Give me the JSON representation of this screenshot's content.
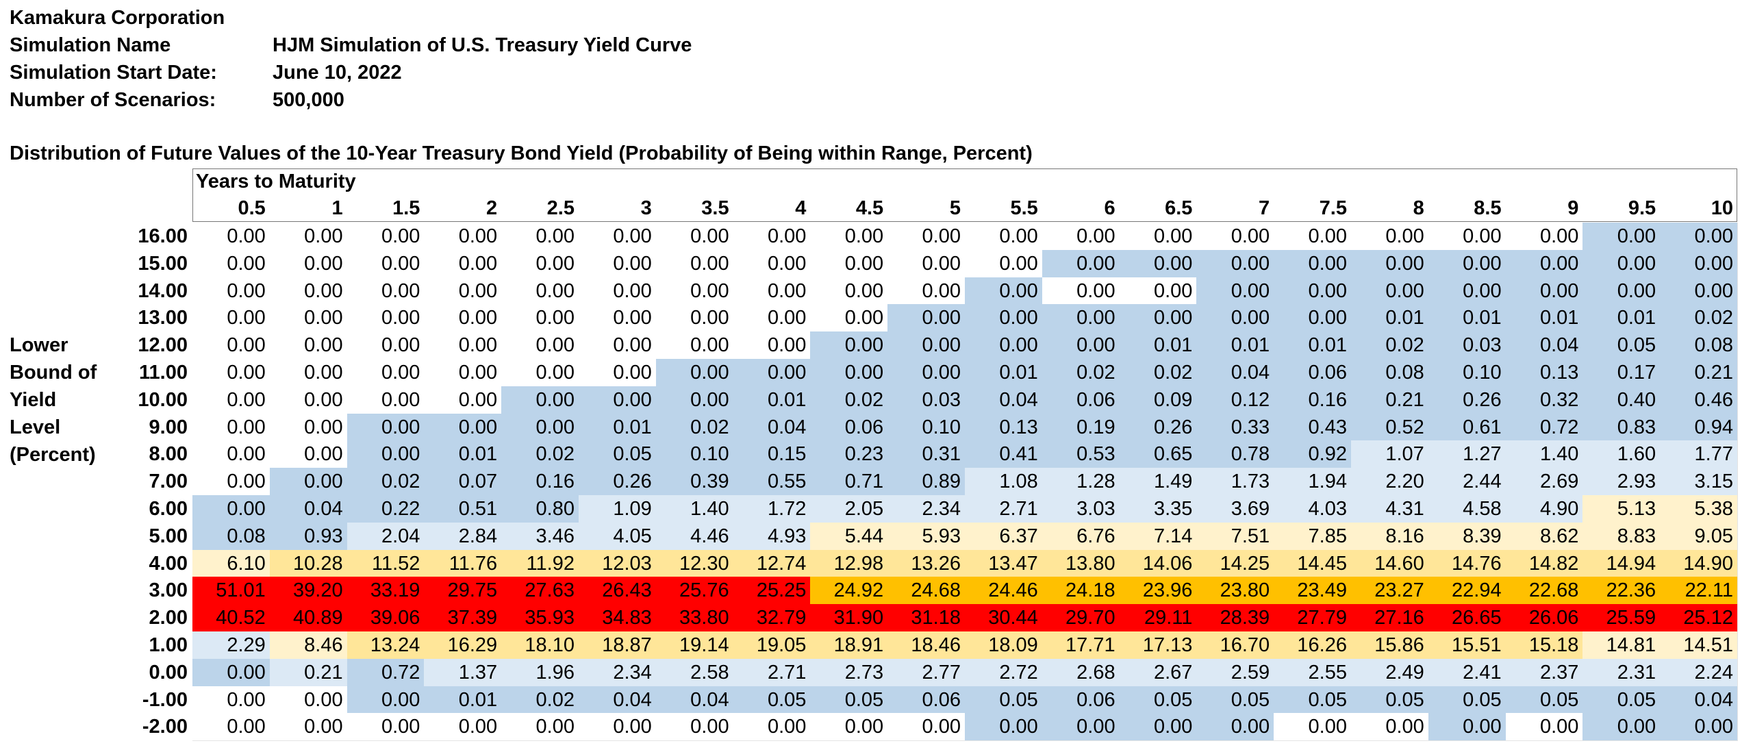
{
  "company": "Kamakura Corporation",
  "meta": {
    "sim_name_label": "Simulation Name",
    "sim_name_value": "HJM Simulation of U.S. Treasury Yield Curve",
    "start_label": "Simulation Start Date:",
    "start_value": "June 10, 2022",
    "scen_label": "Number of Scenarios:",
    "scen_value": "500,000"
  },
  "dist_title": "Distribution of Future Values of the 10-Year Treasury Bond Yield (Probability of Being within Range, Percent)",
  "years_header": "Years to Maturity",
  "side_label": [
    "Lower",
    "Bound of",
    "Yield",
    "Level",
    "(Percent)"
  ],
  "colors": {
    "white": "#ffffff",
    "light_blue": "#dce9f5",
    "blue": "#bcd4ea",
    "light_yellow": "#fff2cc",
    "yellow": "#ffe699",
    "orange": "#ffc000",
    "red": "#ff0000"
  },
  "maturities": [
    "0.5",
    "1",
    "1.5",
    "2",
    "2.5",
    "3",
    "3.5",
    "4",
    "4.5",
    "5",
    "5.5",
    "6",
    "6.5",
    "7",
    "7.5",
    "8",
    "8.5",
    "9",
    "9.5",
    "10"
  ],
  "yield_levels": [
    "16.00",
    "15.00",
    "14.00",
    "13.00",
    "12.00",
    "11.00",
    "10.00",
    "9.00",
    "8.00",
    "7.00",
    "6.00",
    "5.00",
    "4.00",
    "3.00",
    "2.00",
    "1.00",
    "0.00",
    "-1.00",
    "-2.00"
  ],
  "rows": [
    [
      "0.00",
      "0.00",
      "0.00",
      "0.00",
      "0.00",
      "0.00",
      "0.00",
      "0.00",
      "0.00",
      "0.00",
      "0.00",
      "0.00",
      "0.00",
      "0.00",
      "0.00",
      "0.00",
      "0.00",
      "0.00",
      "0.00",
      "0.00"
    ],
    [
      "0.00",
      "0.00",
      "0.00",
      "0.00",
      "0.00",
      "0.00",
      "0.00",
      "0.00",
      "0.00",
      "0.00",
      "0.00",
      "0.00",
      "0.00",
      "0.00",
      "0.00",
      "0.00",
      "0.00",
      "0.00",
      "0.00",
      "0.00"
    ],
    [
      "0.00",
      "0.00",
      "0.00",
      "0.00",
      "0.00",
      "0.00",
      "0.00",
      "0.00",
      "0.00",
      "0.00",
      "0.00",
      "0.00",
      "0.00",
      "0.00",
      "0.00",
      "0.00",
      "0.00",
      "0.00",
      "0.00",
      "0.00"
    ],
    [
      "0.00",
      "0.00",
      "0.00",
      "0.00",
      "0.00",
      "0.00",
      "0.00",
      "0.00",
      "0.00",
      "0.00",
      "0.00",
      "0.00",
      "0.00",
      "0.00",
      "0.00",
      "0.01",
      "0.01",
      "0.01",
      "0.01",
      "0.02"
    ],
    [
      "0.00",
      "0.00",
      "0.00",
      "0.00",
      "0.00",
      "0.00",
      "0.00",
      "0.00",
      "0.00",
      "0.00",
      "0.00",
      "0.00",
      "0.01",
      "0.01",
      "0.01",
      "0.02",
      "0.03",
      "0.04",
      "0.05",
      "0.08"
    ],
    [
      "0.00",
      "0.00",
      "0.00",
      "0.00",
      "0.00",
      "0.00",
      "0.00",
      "0.00",
      "0.00",
      "0.00",
      "0.01",
      "0.02",
      "0.02",
      "0.04",
      "0.06",
      "0.08",
      "0.10",
      "0.13",
      "0.17",
      "0.21"
    ],
    [
      "0.00",
      "0.00",
      "0.00",
      "0.00",
      "0.00",
      "0.00",
      "0.00",
      "0.01",
      "0.02",
      "0.03",
      "0.04",
      "0.06",
      "0.09",
      "0.12",
      "0.16",
      "0.21",
      "0.26",
      "0.32",
      "0.40",
      "0.46"
    ],
    [
      "0.00",
      "0.00",
      "0.00",
      "0.00",
      "0.00",
      "0.01",
      "0.02",
      "0.04",
      "0.06",
      "0.10",
      "0.13",
      "0.19",
      "0.26",
      "0.33",
      "0.43",
      "0.52",
      "0.61",
      "0.72",
      "0.83",
      "0.94"
    ],
    [
      "0.00",
      "0.00",
      "0.00",
      "0.01",
      "0.02",
      "0.05",
      "0.10",
      "0.15",
      "0.23",
      "0.31",
      "0.41",
      "0.53",
      "0.65",
      "0.78",
      "0.92",
      "1.07",
      "1.27",
      "1.40",
      "1.60",
      "1.77"
    ],
    [
      "0.00",
      "0.00",
      "0.02",
      "0.07",
      "0.16",
      "0.26",
      "0.39",
      "0.55",
      "0.71",
      "0.89",
      "1.08",
      "1.28",
      "1.49",
      "1.73",
      "1.94",
      "2.20",
      "2.44",
      "2.69",
      "2.93",
      "3.15"
    ],
    [
      "0.00",
      "0.04",
      "0.22",
      "0.51",
      "0.80",
      "1.09",
      "1.40",
      "1.72",
      "2.05",
      "2.34",
      "2.71",
      "3.03",
      "3.35",
      "3.69",
      "4.03",
      "4.31",
      "4.58",
      "4.90",
      "5.13",
      "5.38"
    ],
    [
      "0.08",
      "0.93",
      "2.04",
      "2.84",
      "3.46",
      "4.05",
      "4.46",
      "4.93",
      "5.44",
      "5.93",
      "6.37",
      "6.76",
      "7.14",
      "7.51",
      "7.85",
      "8.16",
      "8.39",
      "8.62",
      "8.83",
      "9.05"
    ],
    [
      "6.10",
      "10.28",
      "11.52",
      "11.76",
      "11.92",
      "12.03",
      "12.30",
      "12.74",
      "12.98",
      "13.26",
      "13.47",
      "13.80",
      "14.06",
      "14.25",
      "14.45",
      "14.60",
      "14.76",
      "14.82",
      "14.94",
      "14.90"
    ],
    [
      "51.01",
      "39.20",
      "33.19",
      "29.75",
      "27.63",
      "26.43",
      "25.76",
      "25.25",
      "24.92",
      "24.68",
      "24.46",
      "24.18",
      "23.96",
      "23.80",
      "23.49",
      "23.27",
      "22.94",
      "22.68",
      "22.36",
      "22.11"
    ],
    [
      "40.52",
      "40.89",
      "39.06",
      "37.39",
      "35.93",
      "34.83",
      "33.80",
      "32.79",
      "31.90",
      "31.18",
      "30.44",
      "29.70",
      "29.11",
      "28.39",
      "27.79",
      "27.16",
      "26.65",
      "26.06",
      "25.59",
      "25.12"
    ],
    [
      "2.29",
      "8.46",
      "13.24",
      "16.29",
      "18.10",
      "18.87",
      "19.14",
      "19.05",
      "18.91",
      "18.46",
      "18.09",
      "17.71",
      "17.13",
      "16.70",
      "16.26",
      "15.86",
      "15.51",
      "15.18",
      "14.81",
      "14.51"
    ],
    [
      "0.00",
      "0.21",
      "0.72",
      "1.37",
      "1.96",
      "2.34",
      "2.58",
      "2.71",
      "2.73",
      "2.77",
      "2.72",
      "2.68",
      "2.67",
      "2.59",
      "2.55",
      "2.49",
      "2.41",
      "2.37",
      "2.31",
      "2.24"
    ],
    [
      "0.00",
      "0.00",
      "0.00",
      "0.01",
      "0.02",
      "0.04",
      "0.04",
      "0.05",
      "0.05",
      "0.06",
      "0.05",
      "0.06",
      "0.05",
      "0.05",
      "0.05",
      "0.05",
      "0.05",
      "0.05",
      "0.05",
      "0.04"
    ],
    [
      "0.00",
      "0.00",
      "0.00",
      "0.00",
      "0.00",
      "0.00",
      "0.00",
      "0.00",
      "0.00",
      "0.00",
      "0.00",
      "0.00",
      "0.00",
      "0.00",
      "0.00",
      "0.00",
      "0.00",
      "0.00",
      "0.00",
      "0.00"
    ]
  ],
  "row_colors": [
    [
      "W",
      "W",
      "W",
      "W",
      "W",
      "W",
      "W",
      "W",
      "W",
      "W",
      "W",
      "W",
      "W",
      "W",
      "W",
      "W",
      "W",
      "W",
      "B",
      "B"
    ],
    [
      "W",
      "W",
      "W",
      "W",
      "W",
      "W",
      "W",
      "W",
      "W",
      "W",
      "W",
      "B",
      "B",
      "B",
      "B",
      "B",
      "B",
      "B",
      "B",
      "B"
    ],
    [
      "W",
      "W",
      "W",
      "W",
      "W",
      "W",
      "W",
      "W",
      "W",
      "W",
      "B",
      "W",
      "W",
      "B",
      "B",
      "B",
      "B",
      "B",
      "B",
      "B"
    ],
    [
      "W",
      "W",
      "W",
      "W",
      "W",
      "W",
      "W",
      "W",
      "W",
      "B",
      "B",
      "B",
      "B",
      "B",
      "B",
      "B",
      "B",
      "B",
      "B",
      "B"
    ],
    [
      "W",
      "W",
      "W",
      "W",
      "W",
      "W",
      "W",
      "W",
      "B",
      "B",
      "B",
      "B",
      "B",
      "B",
      "B",
      "B",
      "B",
      "B",
      "B",
      "B"
    ],
    [
      "W",
      "W",
      "W",
      "W",
      "W",
      "W",
      "B",
      "B",
      "B",
      "B",
      "B",
      "B",
      "B",
      "B",
      "B",
      "B",
      "B",
      "B",
      "B",
      "B"
    ],
    [
      "W",
      "W",
      "W",
      "W",
      "B",
      "B",
      "B",
      "B",
      "B",
      "B",
      "B",
      "B",
      "B",
      "B",
      "B",
      "B",
      "B",
      "B",
      "B",
      "B"
    ],
    [
      "W",
      "W",
      "B",
      "B",
      "B",
      "B",
      "B",
      "B",
      "B",
      "B",
      "B",
      "B",
      "B",
      "B",
      "B",
      "B",
      "B",
      "B",
      "B",
      "B"
    ],
    [
      "W",
      "W",
      "B",
      "B",
      "B",
      "B",
      "B",
      "B",
      "B",
      "B",
      "B",
      "B",
      "B",
      "B",
      "B",
      "LB",
      "LB",
      "LB",
      "LB",
      "LB"
    ],
    [
      "W",
      "B",
      "B",
      "B",
      "B",
      "B",
      "B",
      "B",
      "B",
      "B",
      "LB",
      "LB",
      "LB",
      "LB",
      "LB",
      "LB",
      "LB",
      "LB",
      "LB",
      "LB"
    ],
    [
      "B",
      "B",
      "B",
      "B",
      "B",
      "LB",
      "LB",
      "LB",
      "LB",
      "LB",
      "LB",
      "LB",
      "LB",
      "LB",
      "LB",
      "LB",
      "LB",
      "LB",
      "LY",
      "LY"
    ],
    [
      "B",
      "B",
      "LB",
      "LB",
      "LB",
      "LB",
      "LB",
      "LB",
      "LY",
      "LY",
      "LY",
      "LY",
      "LY",
      "LY",
      "LY",
      "LY",
      "LY",
      "LY",
      "LY",
      "LY"
    ],
    [
      "LY",
      "Y",
      "Y",
      "Y",
      "Y",
      "Y",
      "Y",
      "Y",
      "Y",
      "Y",
      "Y",
      "Y",
      "Y",
      "Y",
      "Y",
      "Y",
      "Y",
      "Y",
      "Y",
      "Y"
    ],
    [
      "R",
      "R",
      "R",
      "R",
      "R",
      "R",
      "R",
      "R",
      "O",
      "O",
      "O",
      "O",
      "O",
      "O",
      "O",
      "O",
      "O",
      "O",
      "O",
      "O"
    ],
    [
      "R",
      "R",
      "R",
      "R",
      "R",
      "R",
      "R",
      "R",
      "R",
      "R",
      "R",
      "R",
      "R",
      "R",
      "R",
      "R",
      "R",
      "R",
      "R",
      "R"
    ],
    [
      "LB",
      "LY",
      "Y",
      "Y",
      "Y",
      "Y",
      "Y",
      "Y",
      "Y",
      "Y",
      "Y",
      "Y",
      "Y",
      "Y",
      "Y",
      "Y",
      "Y",
      "Y",
      "LY",
      "LY"
    ],
    [
      "B",
      "LB",
      "B",
      "LB",
      "LB",
      "LB",
      "LB",
      "LB",
      "LB",
      "LB",
      "LB",
      "LB",
      "LB",
      "LB",
      "LB",
      "LB",
      "LB",
      "LB",
      "LB",
      "LB"
    ],
    [
      "W",
      "W",
      "B",
      "B",
      "B",
      "B",
      "B",
      "B",
      "B",
      "B",
      "B",
      "B",
      "B",
      "B",
      "B",
      "B",
      "B",
      "B",
      "B",
      "B"
    ],
    [
      "W",
      "W",
      "W",
      "W",
      "W",
      "W",
      "W",
      "W",
      "W",
      "W",
      "B",
      "B",
      "B",
      "B",
      "W",
      "W",
      "B",
      "W",
      "B",
      "B"
    ]
  ]
}
